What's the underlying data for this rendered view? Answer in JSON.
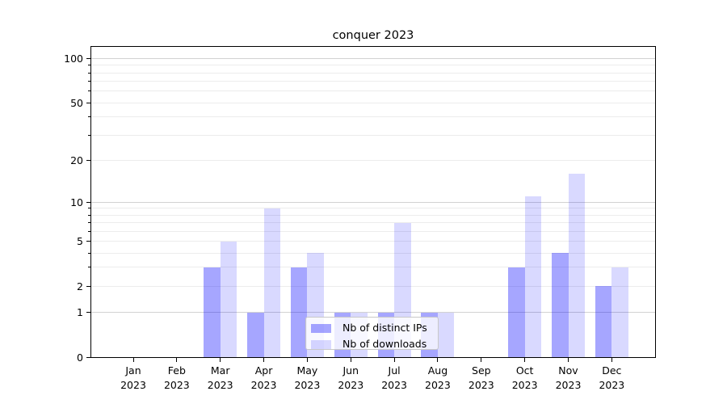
{
  "colors": {
    "background": "#ffffff",
    "axis": "#000000",
    "text": "#000000",
    "grid_major": "#d2d2d2",
    "grid_minor": "#ececec",
    "legend_border": "#c8c8c8",
    "legend_bg": "rgba(255,255,255,0.8)",
    "series_distinct_ips": "#0000ff59",
    "series_downloads": "#0000ff26"
  },
  "chart_data": {
    "type": "bar",
    "title": "conquer 2023",
    "categories": [
      "Jan 2023",
      "Feb 2023",
      "Mar 2023",
      "Apr 2023",
      "May 2023",
      "Jun 2023",
      "Jul 2023",
      "Aug 2023",
      "Sep 2023",
      "Oct 2023",
      "Nov 2023",
      "Dec 2023"
    ],
    "series": [
      {
        "name": "Nb of distinct IPs",
        "color": "#0000ff59",
        "values": [
          0,
          0,
          3,
          1,
          3,
          1,
          1,
          1,
          0,
          3,
          4,
          2
        ]
      },
      {
        "name": "Nb of downloads",
        "color": "#0000ff26",
        "values": [
          0,
          0,
          5,
          9,
          4,
          1,
          7,
          1,
          0,
          11,
          16,
          3
        ]
      }
    ],
    "yscale": "log1p",
    "ylim": [
      0,
      120
    ],
    "ytick_values": [
      0,
      1,
      2,
      5,
      10,
      20,
      50,
      100
    ],
    "ytick_labels": [
      "0",
      "1",
      "2",
      "5",
      "10",
      "20",
      "50",
      "100"
    ],
    "major_gridlines": [
      1,
      10,
      100
    ],
    "minor_gridlines": [
      2,
      3,
      4,
      5,
      6,
      7,
      8,
      9,
      20,
      30,
      40,
      50,
      60,
      70,
      80,
      90
    ],
    "grid": true,
    "legend_position": "lower center",
    "xlabel": "",
    "ylabel": ""
  }
}
